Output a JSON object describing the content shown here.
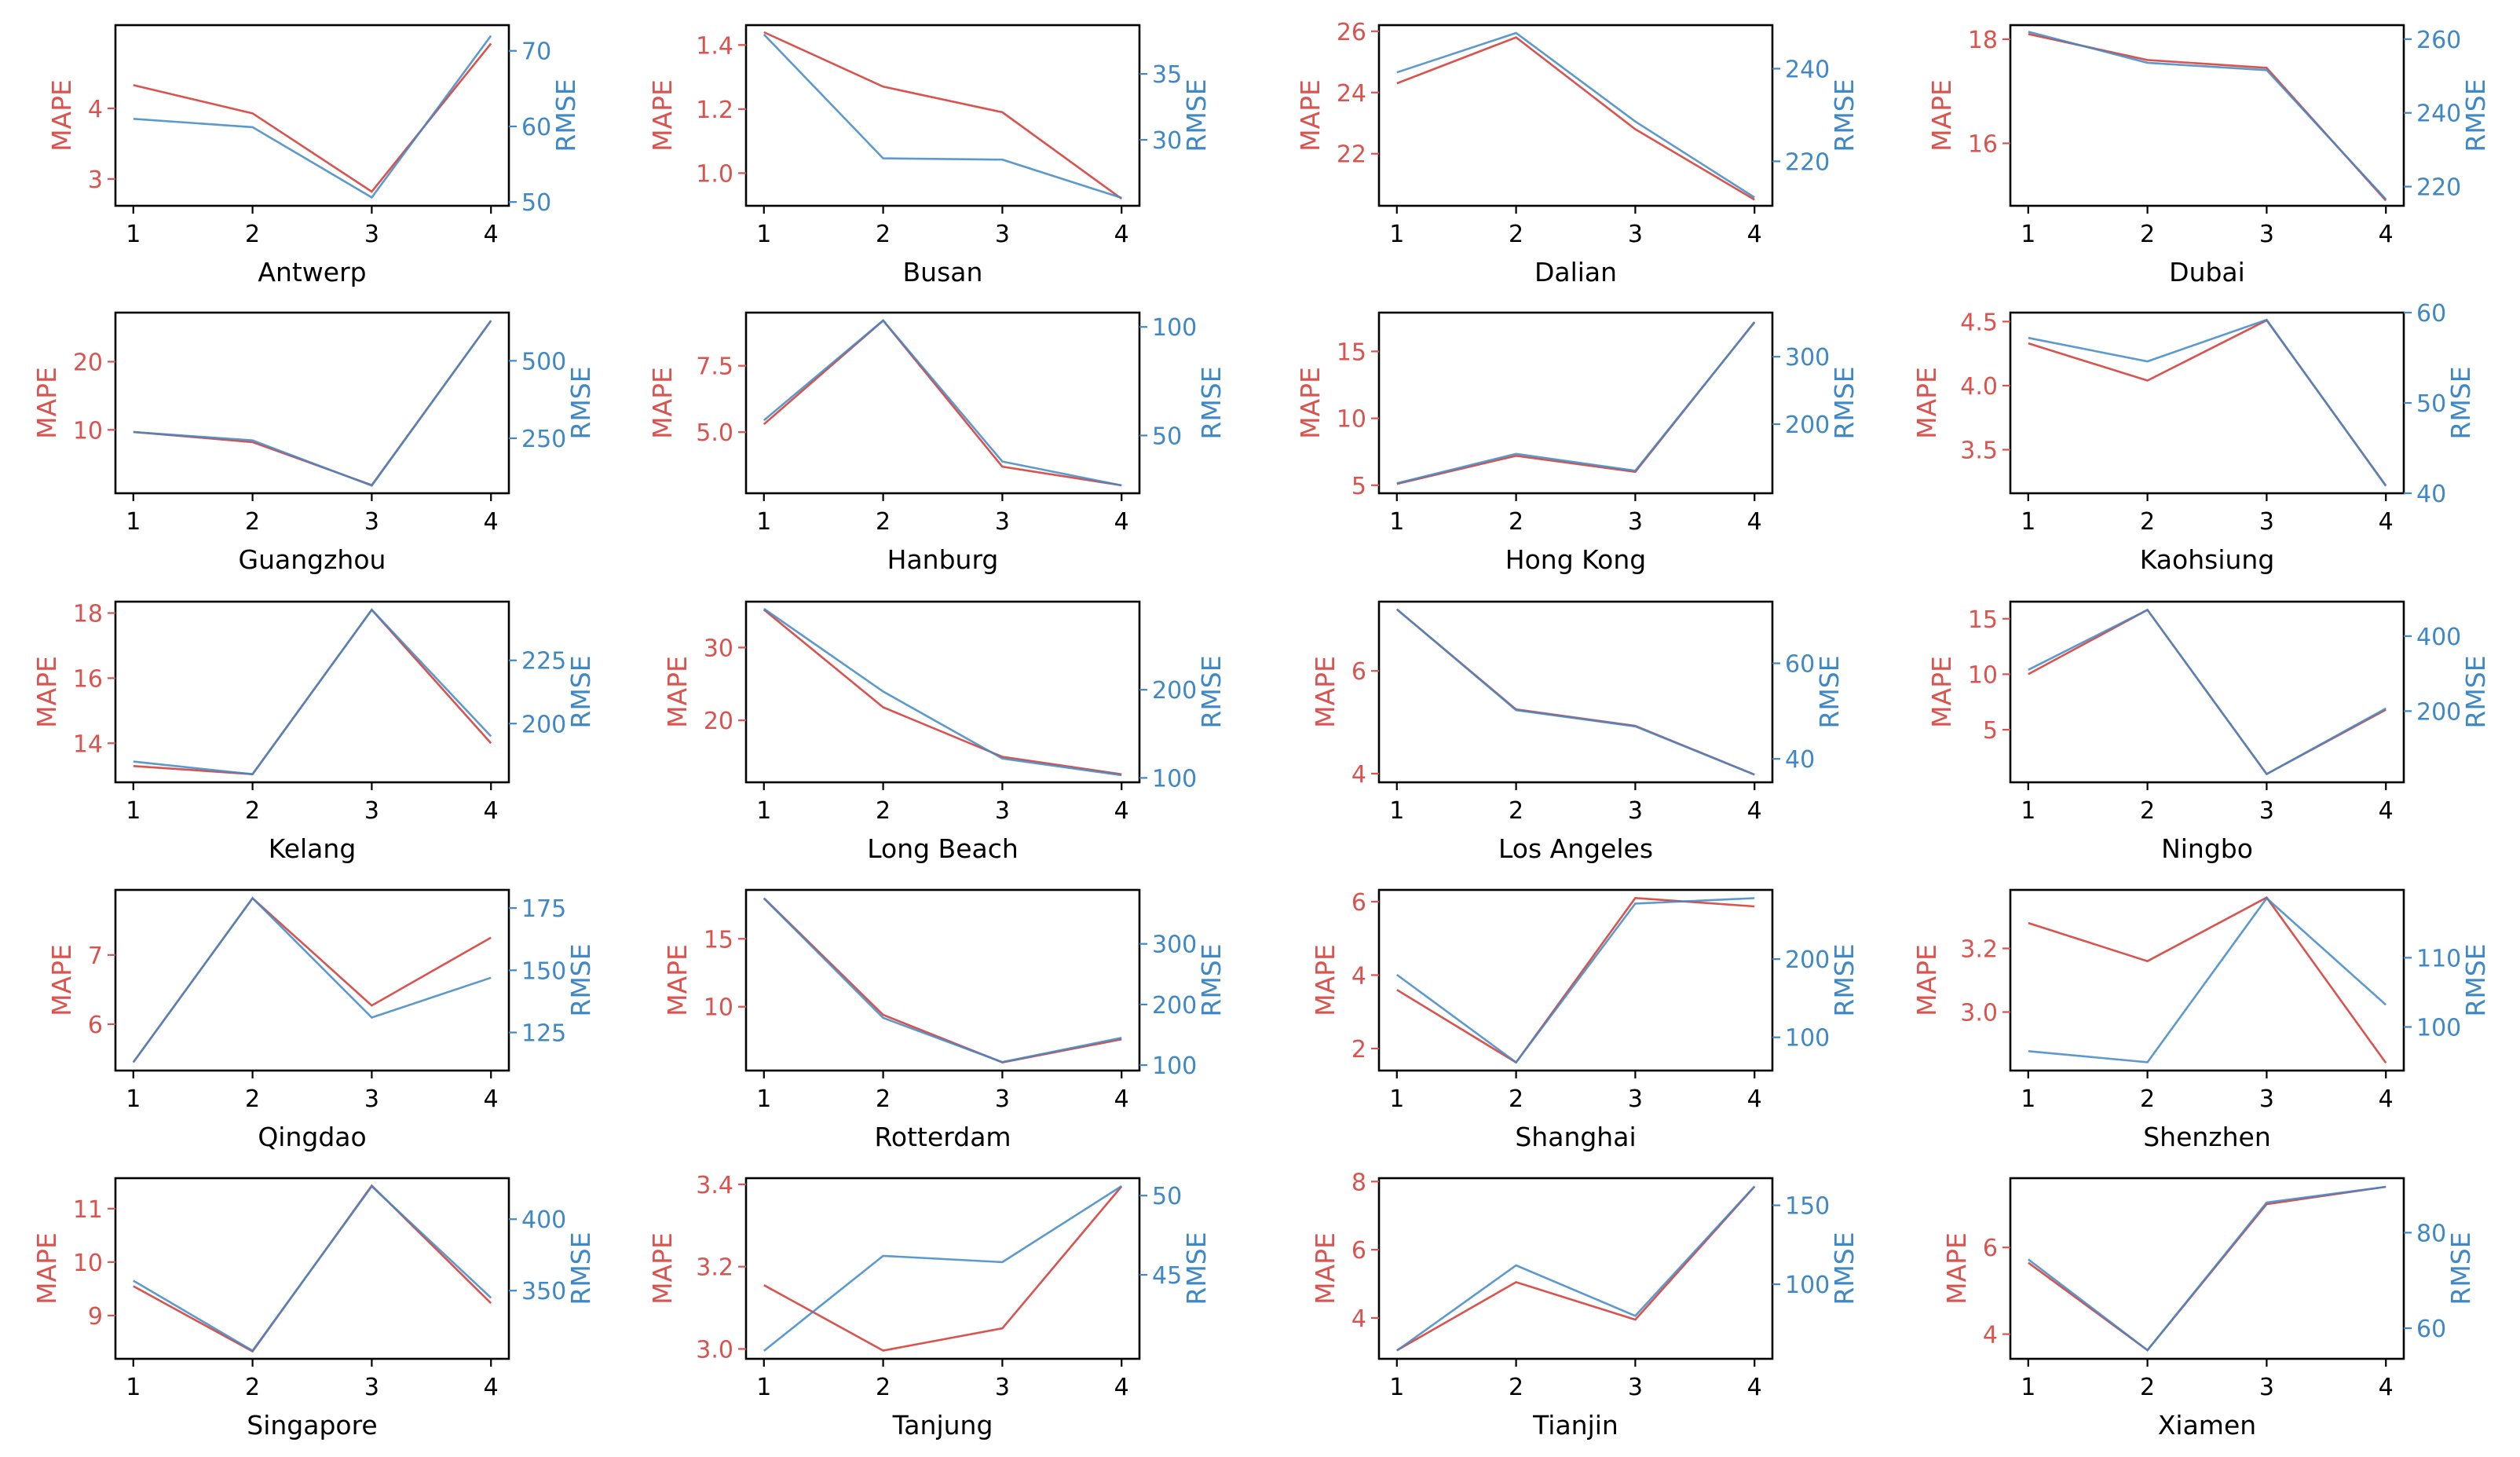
{
  "colors": {
    "mape": "#d9534f",
    "rmse": "#3f88c5",
    "axis": "#000000"
  },
  "y_left_label": "MAPE",
  "y_right_label": "RMSE",
  "chart_data": [
    {
      "type": "line",
      "title": "Antwerp",
      "x": [
        1,
        2,
        3,
        4
      ],
      "series": [
        {
          "name": "MAPE",
          "values": [
            4.33,
            3.93,
            2.82,
            4.92
          ]
        },
        {
          "name": "RMSE",
          "values": [
            61.0,
            59.9,
            50.6,
            72.0
          ]
        }
      ],
      "ylim_left": [
        2.62,
        5.18
      ],
      "yticks_left": [
        3,
        4
      ],
      "ylim_right": [
        49.5,
        73.4
      ],
      "yticks_right": [
        50,
        60,
        70
      ]
    },
    {
      "type": "line",
      "title": "Busan",
      "x": [
        1,
        2,
        3,
        4
      ],
      "series": [
        {
          "name": "MAPE",
          "values": [
            1.44,
            1.27,
            1.19,
            0.92
          ]
        },
        {
          "name": "RMSE",
          "values": [
            38.0,
            28.6,
            28.5,
            25.6
          ]
        }
      ],
      "ylim_left": [
        0.898,
        1.462
      ],
      "yticks_left": [
        1.0,
        1.2,
        1.4
      ],
      "ylim_right": [
        25.0,
        38.7
      ],
      "yticks_right": [
        30,
        35
      ]
    },
    {
      "type": "line",
      "title": "Dalian",
      "x": [
        1,
        2,
        3,
        4
      ],
      "series": [
        {
          "name": "MAPE",
          "values": [
            24.3,
            25.8,
            22.8,
            20.5
          ]
        },
        {
          "name": "RMSE",
          "values": [
            239.2,
            247.7,
            228.6,
            212.2
          ]
        }
      ],
      "ylim_left": [
        20.3,
        26.2
      ],
      "yticks_left": [
        22,
        24,
        26
      ],
      "ylim_right": [
        210.4,
        249.4
      ],
      "yticks_right": [
        220,
        240
      ]
    },
    {
      "type": "line",
      "title": "Dubai",
      "x": [
        1,
        2,
        3,
        4
      ],
      "series": [
        {
          "name": "MAPE",
          "values": [
            18.1,
            17.6,
            17.45,
            14.9
          ]
        },
        {
          "name": "RMSE",
          "values": [
            262,
            253.6,
            251.6,
            216.6
          ]
        }
      ],
      "ylim_left": [
        14.8,
        18.27
      ],
      "yticks_left": [
        16,
        18
      ],
      "ylim_right": [
        214.8,
        263.8
      ],
      "yticks_right": [
        220,
        240,
        260
      ]
    },
    {
      "type": "line",
      "title": "Guangzhou",
      "x": [
        1,
        2,
        3,
        4
      ],
      "series": [
        {
          "name": "MAPE",
          "values": [
            9.7,
            8.2,
            1.9,
            26.0
          ]
        },
        {
          "name": "RMSE",
          "values": [
            270,
            243,
            97,
            630
          ]
        }
      ],
      "ylim_left": [
        0.7,
        27.2
      ],
      "yticks_left": [
        10,
        20
      ],
      "ylim_right": [
        72.5,
        655.5
      ],
      "yticks_right": [
        250,
        500
      ]
    },
    {
      "type": "line",
      "title": "Hanburg",
      "x": [
        1,
        2,
        3,
        4
      ],
      "series": [
        {
          "name": "MAPE",
          "values": [
            5.3,
            9.2,
            3.7,
            3.0
          ]
        },
        {
          "name": "RMSE",
          "values": [
            57,
            103,
            38,
            27
          ]
        }
      ],
      "ylim_left": [
        2.7,
        9.5
      ],
      "yticks_left": [
        5.0,
        7.5
      ],
      "ylim_right": [
        23.4,
        106.6
      ],
      "yticks_right": [
        50,
        100
      ]
    },
    {
      "type": "line",
      "title": "Hong Kong",
      "x": [
        1,
        2,
        3,
        4
      ],
      "series": [
        {
          "name": "MAPE",
          "values": [
            5.1,
            7.2,
            6.0,
            17.2
          ]
        },
        {
          "name": "RMSE",
          "values": [
            112.5,
            156,
            131,
            351
          ]
        }
      ],
      "ylim_left": [
        4.4,
        17.9
      ],
      "yticks_left": [
        5,
        10,
        15
      ],
      "ylim_right": [
        97.6,
        365.4
      ],
      "yticks_right": [
        200,
        300
      ]
    },
    {
      "type": "line",
      "title": "Kaohsiung",
      "x": [
        1,
        2,
        3,
        4
      ],
      "series": [
        {
          "name": "MAPE",
          "values": [
            4.33,
            4.04,
            4.51,
            3.22
          ]
        },
        {
          "name": "RMSE",
          "values": [
            57.2,
            54.6,
            59.2,
            40.8
          ]
        }
      ],
      "ylim_left": [
        3.16,
        4.57
      ],
      "yticks_left": [
        3.5,
        4.0,
        4.5
      ],
      "ylim_right": [
        40.0,
        60.0
      ],
      "yticks_right": [
        40,
        50,
        60
      ]
    },
    {
      "type": "line",
      "title": "Kelang",
      "x": [
        1,
        2,
        3,
        4
      ],
      "series": [
        {
          "name": "MAPE",
          "values": [
            13.3,
            13.05,
            18.1,
            14.0
          ]
        },
        {
          "name": "RMSE",
          "values": [
            185,
            180,
            245,
            195
          ]
        }
      ],
      "ylim_left": [
        12.8,
        18.35
      ],
      "yticks_left": [
        14,
        16,
        18
      ],
      "ylim_right": [
        176.8,
        248.2
      ],
      "yticks_right": [
        200,
        225
      ]
    },
    {
      "type": "line",
      "title": "Long Beach",
      "x": [
        1,
        2,
        3,
        4
      ],
      "series": [
        {
          "name": "MAPE",
          "values": [
            35.2,
            21.8,
            15.0,
            12.6
          ]
        },
        {
          "name": "RMSE",
          "values": [
            292,
            198,
            122,
            103
          ]
        }
      ],
      "ylim_left": [
        11.5,
        36.3
      ],
      "yticks_left": [
        20,
        30
      ],
      "ylim_right": [
        95,
        300
      ],
      "yticks_right": [
        100,
        200
      ]
    },
    {
      "type": "line",
      "title": "Los Angeles",
      "x": [
        1,
        2,
        3,
        4
      ],
      "series": [
        {
          "name": "MAPE",
          "values": [
            7.2,
            5.25,
            4.93,
            3.98
          ]
        },
        {
          "name": "RMSE",
          "values": [
            71.3,
            50.2,
            46.8,
            36.7
          ]
        }
      ],
      "ylim_left": [
        3.83,
        7.35
      ],
      "yticks_left": [
        4,
        6
      ],
      "ylim_right": [
        35.1,
        72.9
      ],
      "yticks_right": [
        40,
        60
      ]
    },
    {
      "type": "line",
      "title": "Ningbo",
      "x": [
        1,
        2,
        3,
        4
      ],
      "series": [
        {
          "name": "MAPE",
          "values": [
            10.0,
            15.8,
            1.0,
            6.8
          ]
        },
        {
          "name": "RMSE",
          "values": [
            310,
            470,
            32,
            207
          ]
        }
      ],
      "ylim_left": [
        0.26,
        16.54
      ],
      "yticks_left": [
        5,
        10,
        15
      ],
      "ylim_right": [
        10.1,
        491.9
      ],
      "yticks_right": [
        200,
        400
      ]
    },
    {
      "type": "line",
      "title": "Qingdao",
      "x": [
        1,
        2,
        3,
        4
      ],
      "series": [
        {
          "name": "MAPE",
          "values": [
            5.45,
            7.82,
            6.27,
            7.25
          ]
        },
        {
          "name": "RMSE",
          "values": [
            113,
            179,
            131,
            147
          ]
        }
      ],
      "ylim_left": [
        5.33,
        7.94
      ],
      "yticks_left": [
        6,
        7
      ],
      "ylim_right": [
        109.7,
        182.3
      ],
      "yticks_right": [
        125,
        150,
        175
      ]
    },
    {
      "type": "line",
      "title": "Rotterdam",
      "x": [
        1,
        2,
        3,
        4
      ],
      "series": [
        {
          "name": "MAPE",
          "values": [
            18.0,
            9.4,
            5.9,
            7.6
          ]
        },
        {
          "name": "RMSE",
          "values": [
            375,
            178,
            105,
            145
          ]
        }
      ],
      "ylim_left": [
        5.3,
        18.6
      ],
      "yticks_left": [
        10,
        15
      ],
      "ylim_right": [
        91,
        389
      ],
      "yticks_right": [
        100,
        200,
        300
      ]
    },
    {
      "type": "line",
      "title": "Shanghai",
      "x": [
        1,
        2,
        3,
        4
      ],
      "series": [
        {
          "name": "MAPE",
          "values": [
            3.6,
            1.62,
            6.1,
            5.87
          ]
        },
        {
          "name": "RMSE",
          "values": [
            180,
            68,
            271,
            278
          ]
        }
      ],
      "ylim_left": [
        1.4,
        6.32
      ],
      "yticks_left": [
        2,
        4,
        6
      ],
      "ylim_right": [
        57.5,
        288.5
      ],
      "yticks_right": [
        100,
        200
      ]
    },
    {
      "type": "line",
      "title": "Shenzhen",
      "x": [
        1,
        2,
        3,
        4
      ],
      "series": [
        {
          "name": "MAPE",
          "values": [
            3.28,
            3.16,
            3.36,
            2.84
          ]
        },
        {
          "name": "RMSE",
          "values": [
            96.5,
            94.9,
            118.6,
            103.2
          ]
        }
      ],
      "ylim_left": [
        2.816,
        3.384
      ],
      "yticks_left": [
        3.0,
        3.2
      ],
      "ylim_right": [
        93.7,
        119.8
      ],
      "yticks_right": [
        100,
        110
      ]
    },
    {
      "type": "line",
      "title": "Singapore",
      "x": [
        1,
        2,
        3,
        4
      ],
      "series": [
        {
          "name": "MAPE",
          "values": [
            9.55,
            8.33,
            11.43,
            9.23
          ]
        },
        {
          "name": "RMSE",
          "values": [
            357,
            308,
            423,
            345
          ]
        }
      ],
      "ylim_left": [
        8.19,
        11.57
      ],
      "yticks_left": [
        9,
        10,
        11
      ],
      "ylim_right": [
        302.3,
        428.7
      ],
      "yticks_right": [
        350,
        400
      ]
    },
    {
      "type": "line",
      "title": "Tanjung",
      "x": [
        1,
        2,
        3,
        4
      ],
      "series": [
        {
          "name": "MAPE",
          "values": [
            3.155,
            2.996,
            3.05,
            3.395
          ]
        },
        {
          "name": "RMSE",
          "values": [
            40.2,
            46.2,
            45.8,
            50.6
          ]
        }
      ],
      "ylim_left": [
        2.976,
        3.415
      ],
      "yticks_left": [
        3.0,
        3.2,
        3.4
      ],
      "ylim_right": [
        39.7,
        51.1
      ],
      "yticks_right": [
        45,
        50
      ]
    },
    {
      "type": "line",
      "title": "Tianjin",
      "x": [
        1,
        2,
        3,
        4
      ],
      "series": [
        {
          "name": "MAPE",
          "values": [
            3.05,
            5.05,
            3.95,
            7.85
          ]
        },
        {
          "name": "RMSE",
          "values": [
            58,
            112,
            80,
            162
          ]
        }
      ],
      "ylim_left": [
        2.8,
        8.1
      ],
      "yticks_left": [
        4,
        6,
        8
      ],
      "ylim_right": [
        52.8,
        167.2
      ],
      "yticks_right": [
        100,
        150
      ]
    },
    {
      "type": "line",
      "title": "Xiamen",
      "x": [
        1,
        2,
        3,
        4
      ],
      "series": [
        {
          "name": "MAPE",
          "values": [
            5.65,
            3.63,
            7.0,
            7.4
          ]
        },
        {
          "name": "RMSE",
          "values": [
            74.4,
            55.4,
            86.3,
            89.6
          ]
        }
      ],
      "ylim_left": [
        3.43,
        7.6
      ],
      "yticks_left": [
        4,
        6
      ],
      "ylim_right": [
        53.6,
        91.4
      ],
      "yticks_right": [
        60,
        80
      ]
    }
  ]
}
